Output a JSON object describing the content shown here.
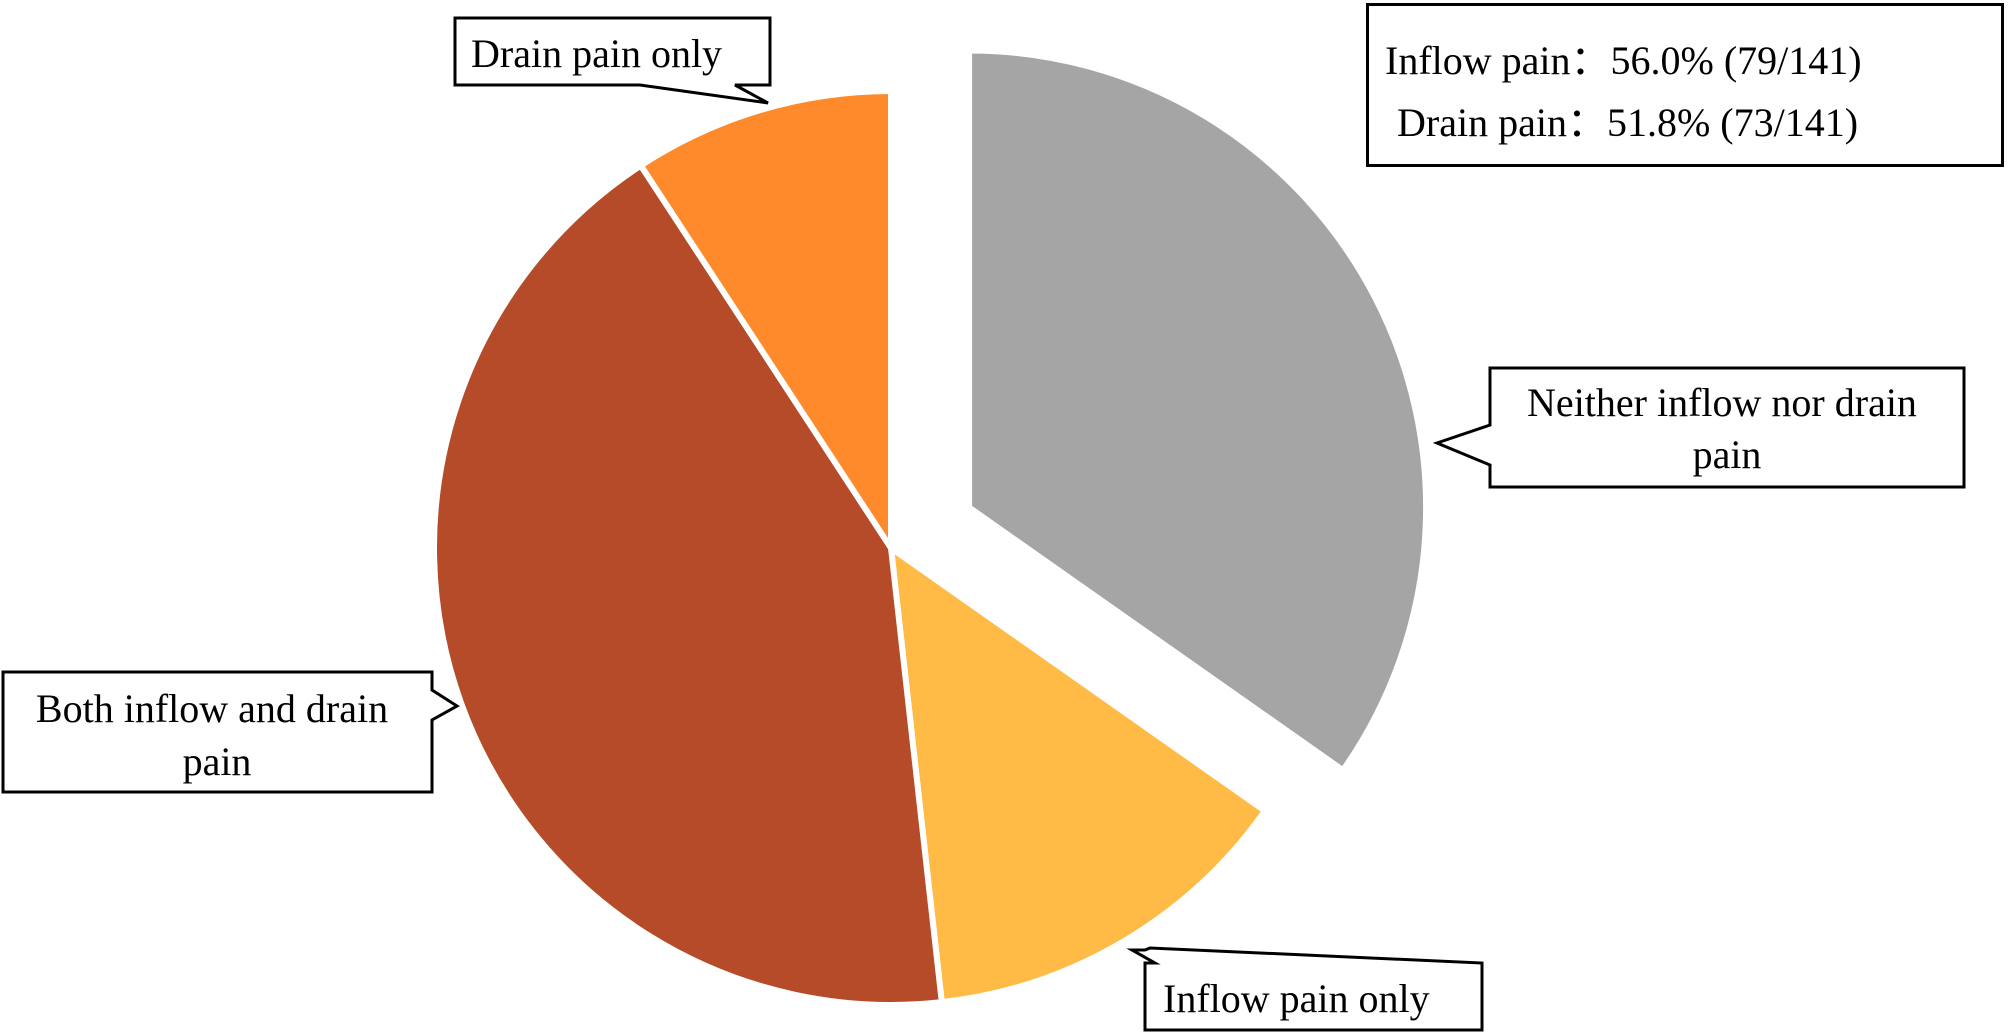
{
  "chart_data": {
    "type": "pie",
    "total": 141,
    "start_angle_deg": 0,
    "direction": "clockwise",
    "slices": [
      {
        "label": "Neither inflow nor drain pain",
        "value": 49,
        "color": "#A5A5A5",
        "exploded": true
      },
      {
        "label": "Inflow pain only",
        "value": 19,
        "color": "#FFBB45",
        "exploded": false
      },
      {
        "label": "Both inflow and drain pain",
        "value": 60,
        "color": "#B54B28",
        "exploded": false
      },
      {
        "label": "Drain pain only",
        "value": 13,
        "color": "#FF8A2B",
        "exploded": false
      }
    ]
  },
  "summary": {
    "inflow_label": "Inflow pain：",
    "inflow_value": "56.0% (79/141)",
    "drain_label": "Drain pain：",
    "drain_value": "51.8% (73/141)"
  }
}
